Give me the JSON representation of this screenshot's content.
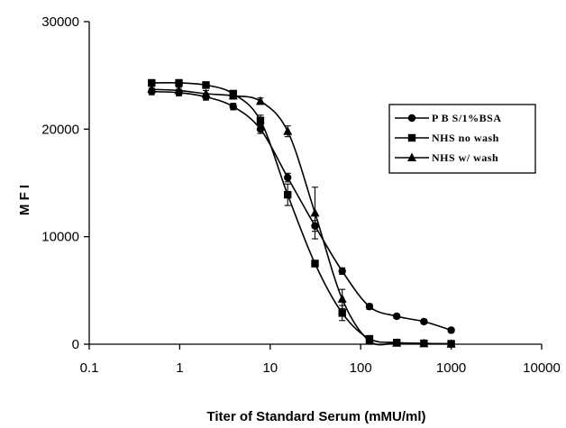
{
  "chart_data": {
    "type": "line",
    "title": "",
    "xlabel": "Titer of Standard Serum (mMU/ml)",
    "ylabel": "M F I",
    "x_scale": "log",
    "xlim": [
      0.1,
      10000
    ],
    "ylim": [
      0,
      30000
    ],
    "x_ticks": [
      0.1,
      1,
      10,
      100,
      1000,
      10000
    ],
    "x_tick_labels": [
      "0.1",
      "1",
      "10",
      "100",
      "1000",
      "10000"
    ],
    "y_ticks": [
      0,
      10000,
      20000,
      30000
    ],
    "y_tick_labels": [
      "0",
      "10000",
      "20000",
      "30000"
    ],
    "grid": false,
    "legend_position": "right",
    "x": [
      0.49,
      0.98,
      1.95,
      3.9,
      7.8,
      15.6,
      31.25,
      62.5,
      125,
      250,
      500,
      1000
    ],
    "series": [
      {
        "name": "P B S/1%BSA",
        "marker": "circle",
        "values": [
          23500,
          23400,
          23000,
          22100,
          20000,
          15500,
          11000,
          6800,
          3500,
          2600,
          2100,
          1300
        ],
        "errors": [
          300,
          300,
          300,
          300,
          400,
          400,
          500,
          300,
          250,
          200,
          200,
          200
        ]
      },
      {
        "name": "NHS no wash",
        "marker": "square",
        "values": [
          24300,
          24300,
          24100,
          23300,
          20800,
          13900,
          7500,
          2900,
          500,
          150,
          80,
          40
        ],
        "errors": [
          300,
          300,
          300,
          300,
          500,
          1000,
          300,
          700,
          200,
          100,
          50,
          30
        ]
      },
      {
        "name": "NHS w/ wash",
        "marker": "triangle",
        "values": [
          23700,
          23600,
          23300,
          23100,
          22600,
          19800,
          12200,
          4200,
          300,
          100,
          60,
          20
        ],
        "errors": [
          300,
          300,
          300,
          300,
          300,
          500,
          2400,
          900,
          200,
          100,
          50,
          30
        ]
      }
    ]
  }
}
